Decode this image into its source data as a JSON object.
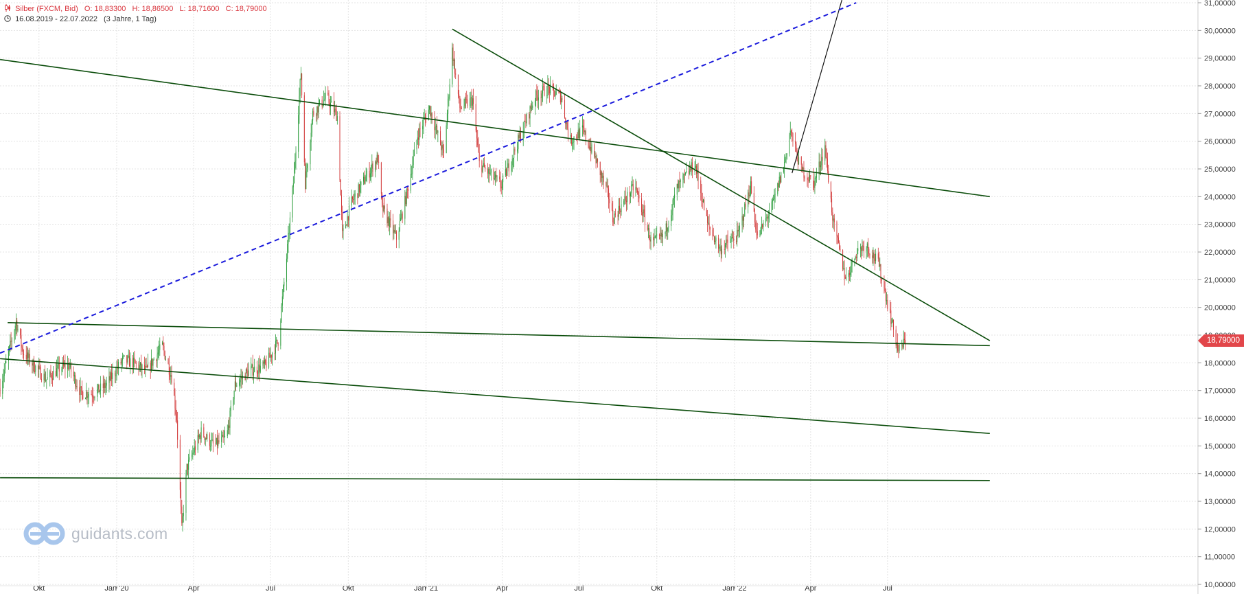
{
  "header": {
    "instrument": "Silber (FXCM, Bid)",
    "open": "O: 18,83300",
    "high": "H: 18,86500",
    "low": "L: 18,71600",
    "close": "C: 18,79000",
    "range": "16.08.2019 - 22.07.2022",
    "period": "(3 Jahre, 1 Tag)"
  },
  "logo": {
    "text": "guidants.com"
  },
  "current_price_label": "18,79000",
  "colors": {
    "up": "#2e9e3e",
    "down": "#d23a3a",
    "trendline": "#0b4d0b",
    "dashed_line": "#1a1adc",
    "grid": "#e3e3e3",
    "price_label_bg": "#e2464a"
  },
  "chart_data": {
    "type": "candlestick",
    "x_axis": {
      "type": "date",
      "range": [
        "2019-08-16",
        "2022-07-22"
      ],
      "ticks": [
        {
          "date": "2019-10-01",
          "label": "Okt"
        },
        {
          "date": "2020-01-01",
          "label": "Jan '20"
        },
        {
          "date": "2020-04-01",
          "label": "Apr"
        },
        {
          "date": "2020-07-01",
          "label": "Jul"
        },
        {
          "date": "2020-10-01",
          "label": "Okt"
        },
        {
          "date": "2021-01-01",
          "label": "Jan '21"
        },
        {
          "date": "2021-04-01",
          "label": "Apr"
        },
        {
          "date": "2021-07-01",
          "label": "Jul"
        },
        {
          "date": "2021-10-01",
          "label": "Okt"
        },
        {
          "date": "2022-01-01",
          "label": "Jan '22"
        },
        {
          "date": "2022-04-01",
          "label": "Apr"
        },
        {
          "date": "2022-07-01",
          "label": "Jul"
        }
      ]
    },
    "y_axis": {
      "min": 10,
      "max": 31,
      "position": "right",
      "ticks": [
        "10,00000",
        "11,00000",
        "12,00000",
        "13,00000",
        "14,00000",
        "15,00000",
        "16,00000",
        "17,00000",
        "18,00000",
        "19,00000",
        "20,00000",
        "21,00000",
        "22,00000",
        "23,00000",
        "24,00000",
        "25,00000",
        "26,00000",
        "27,00000",
        "28,00000",
        "29,00000",
        "30,00000",
        "31,00000"
      ]
    },
    "grid": true,
    "last_close": 18.79,
    "price_path": [
      [
        "2019-08-16",
        17.1
      ],
      [
        "2019-08-28",
        18.6
      ],
      [
        "2019-09-04",
        19.5
      ],
      [
        "2019-09-12",
        18.4
      ],
      [
        "2019-09-25",
        17.9
      ],
      [
        "2019-10-10",
        17.4
      ],
      [
        "2019-10-25",
        17.8
      ],
      [
        "2019-11-05",
        17.9
      ],
      [
        "2019-11-20",
        16.9
      ],
      [
        "2019-12-05",
        16.9
      ],
      [
        "2019-12-20",
        17.2
      ],
      [
        "2020-01-08",
        18.1
      ],
      [
        "2020-01-20",
        18.0
      ],
      [
        "2020-02-05",
        17.7
      ],
      [
        "2020-02-24",
        18.6
      ],
      [
        "2020-03-06",
        17.5
      ],
      [
        "2020-03-12",
        16.0
      ],
      [
        "2020-03-18",
        12.0
      ],
      [
        "2020-03-24",
        14.2
      ],
      [
        "2020-04-10",
        15.5
      ],
      [
        "2020-04-25",
        15.0
      ],
      [
        "2020-05-10",
        15.3
      ],
      [
        "2020-05-20",
        17.2
      ],
      [
        "2020-06-05",
        17.7
      ],
      [
        "2020-06-25",
        17.9
      ],
      [
        "2020-07-10",
        18.8
      ],
      [
        "2020-07-20",
        21.8
      ],
      [
        "2020-07-28",
        24.5
      ],
      [
        "2020-08-06",
        28.5
      ],
      [
        "2020-08-11",
        24.5
      ],
      [
        "2020-08-20",
        27.0
      ],
      [
        "2020-09-05",
        27.6
      ],
      [
        "2020-09-18",
        26.9
      ],
      [
        "2020-09-24",
        22.6
      ],
      [
        "2020-10-05",
        23.8
      ],
      [
        "2020-10-20",
        24.6
      ],
      [
        "2020-11-05",
        25.4
      ],
      [
        "2020-11-10",
        23.6
      ],
      [
        "2020-11-27",
        22.5
      ],
      [
        "2020-12-10",
        24.2
      ],
      [
        "2020-12-22",
        26.2
      ],
      [
        "2021-01-05",
        27.2
      ],
      [
        "2021-01-22",
        25.5
      ],
      [
        "2021-02-01",
        29.3
      ],
      [
        "2021-02-10",
        27.2
      ],
      [
        "2021-02-25",
        27.5
      ],
      [
        "2021-03-05",
        25.2
      ],
      [
        "2021-03-31",
        24.4
      ],
      [
        "2021-04-20",
        26.0
      ],
      [
        "2021-05-10",
        27.6
      ],
      [
        "2021-05-25",
        27.9
      ],
      [
        "2021-06-10",
        27.6
      ],
      [
        "2021-06-20",
        26.0
      ],
      [
        "2021-07-05",
        26.4
      ],
      [
        "2021-07-20",
        25.4
      ],
      [
        "2021-08-05",
        24.0
      ],
      [
        "2021-08-10",
        23.2
      ],
      [
        "2021-08-25",
        23.9
      ],
      [
        "2021-09-05",
        24.4
      ],
      [
        "2021-09-25",
        22.3
      ],
      [
        "2021-10-10",
        22.6
      ],
      [
        "2021-10-25",
        24.3
      ],
      [
        "2021-11-15",
        25.2
      ],
      [
        "2021-11-30",
        23.0
      ],
      [
        "2021-12-15",
        22.1
      ],
      [
        "2022-01-05",
        22.6
      ],
      [
        "2022-01-20",
        24.4
      ],
      [
        "2022-01-28",
        22.5
      ],
      [
        "2022-02-15",
        23.7
      ],
      [
        "2022-03-01",
        25.2
      ],
      [
        "2022-03-08",
        26.4
      ],
      [
        "2022-03-20",
        25.0
      ],
      [
        "2022-04-05",
        24.5
      ],
      [
        "2022-04-18",
        25.8
      ],
      [
        "2022-04-28",
        23.0
      ],
      [
        "2022-05-13",
        21.0
      ],
      [
        "2022-05-25",
        22.0
      ],
      [
        "2022-06-05",
        22.3
      ],
      [
        "2022-06-20",
        21.6
      ],
      [
        "2022-06-30",
        20.3
      ],
      [
        "2022-07-08",
        19.2
      ],
      [
        "2022-07-14",
        18.4
      ],
      [
        "2022-07-22",
        18.79
      ]
    ],
    "annotations": [
      {
        "type": "trendline",
        "from": [
          "2019-08-16",
          28.95
        ],
        "to": [
          "2022-10-30",
          24.0
        ]
      },
      {
        "type": "trendline",
        "from": [
          "2021-02-01",
          30.05
        ],
        "to": [
          "2022-10-30",
          18.8
        ]
      },
      {
        "type": "trendline",
        "from": [
          "2019-08-25",
          19.45
        ],
        "to": [
          "2022-10-30",
          18.62
        ]
      },
      {
        "type": "trendline",
        "from": [
          "2019-08-16",
          18.15
        ],
        "to": [
          "2022-10-30",
          15.45
        ]
      },
      {
        "type": "trendline",
        "from": [
          "2019-08-16",
          13.85
        ],
        "to": [
          "2022-10-30",
          13.75
        ]
      },
      {
        "type": "line",
        "from": [
          "2022-03-10",
          24.85
        ],
        "to": [
          "2022-05-08",
          31.1
        ]
      },
      {
        "type": "dashed_trendline",
        "from": [
          "2019-08-16",
          18.35
        ],
        "to": [
          "2022-05-25",
          31.0
        ]
      }
    ]
  }
}
